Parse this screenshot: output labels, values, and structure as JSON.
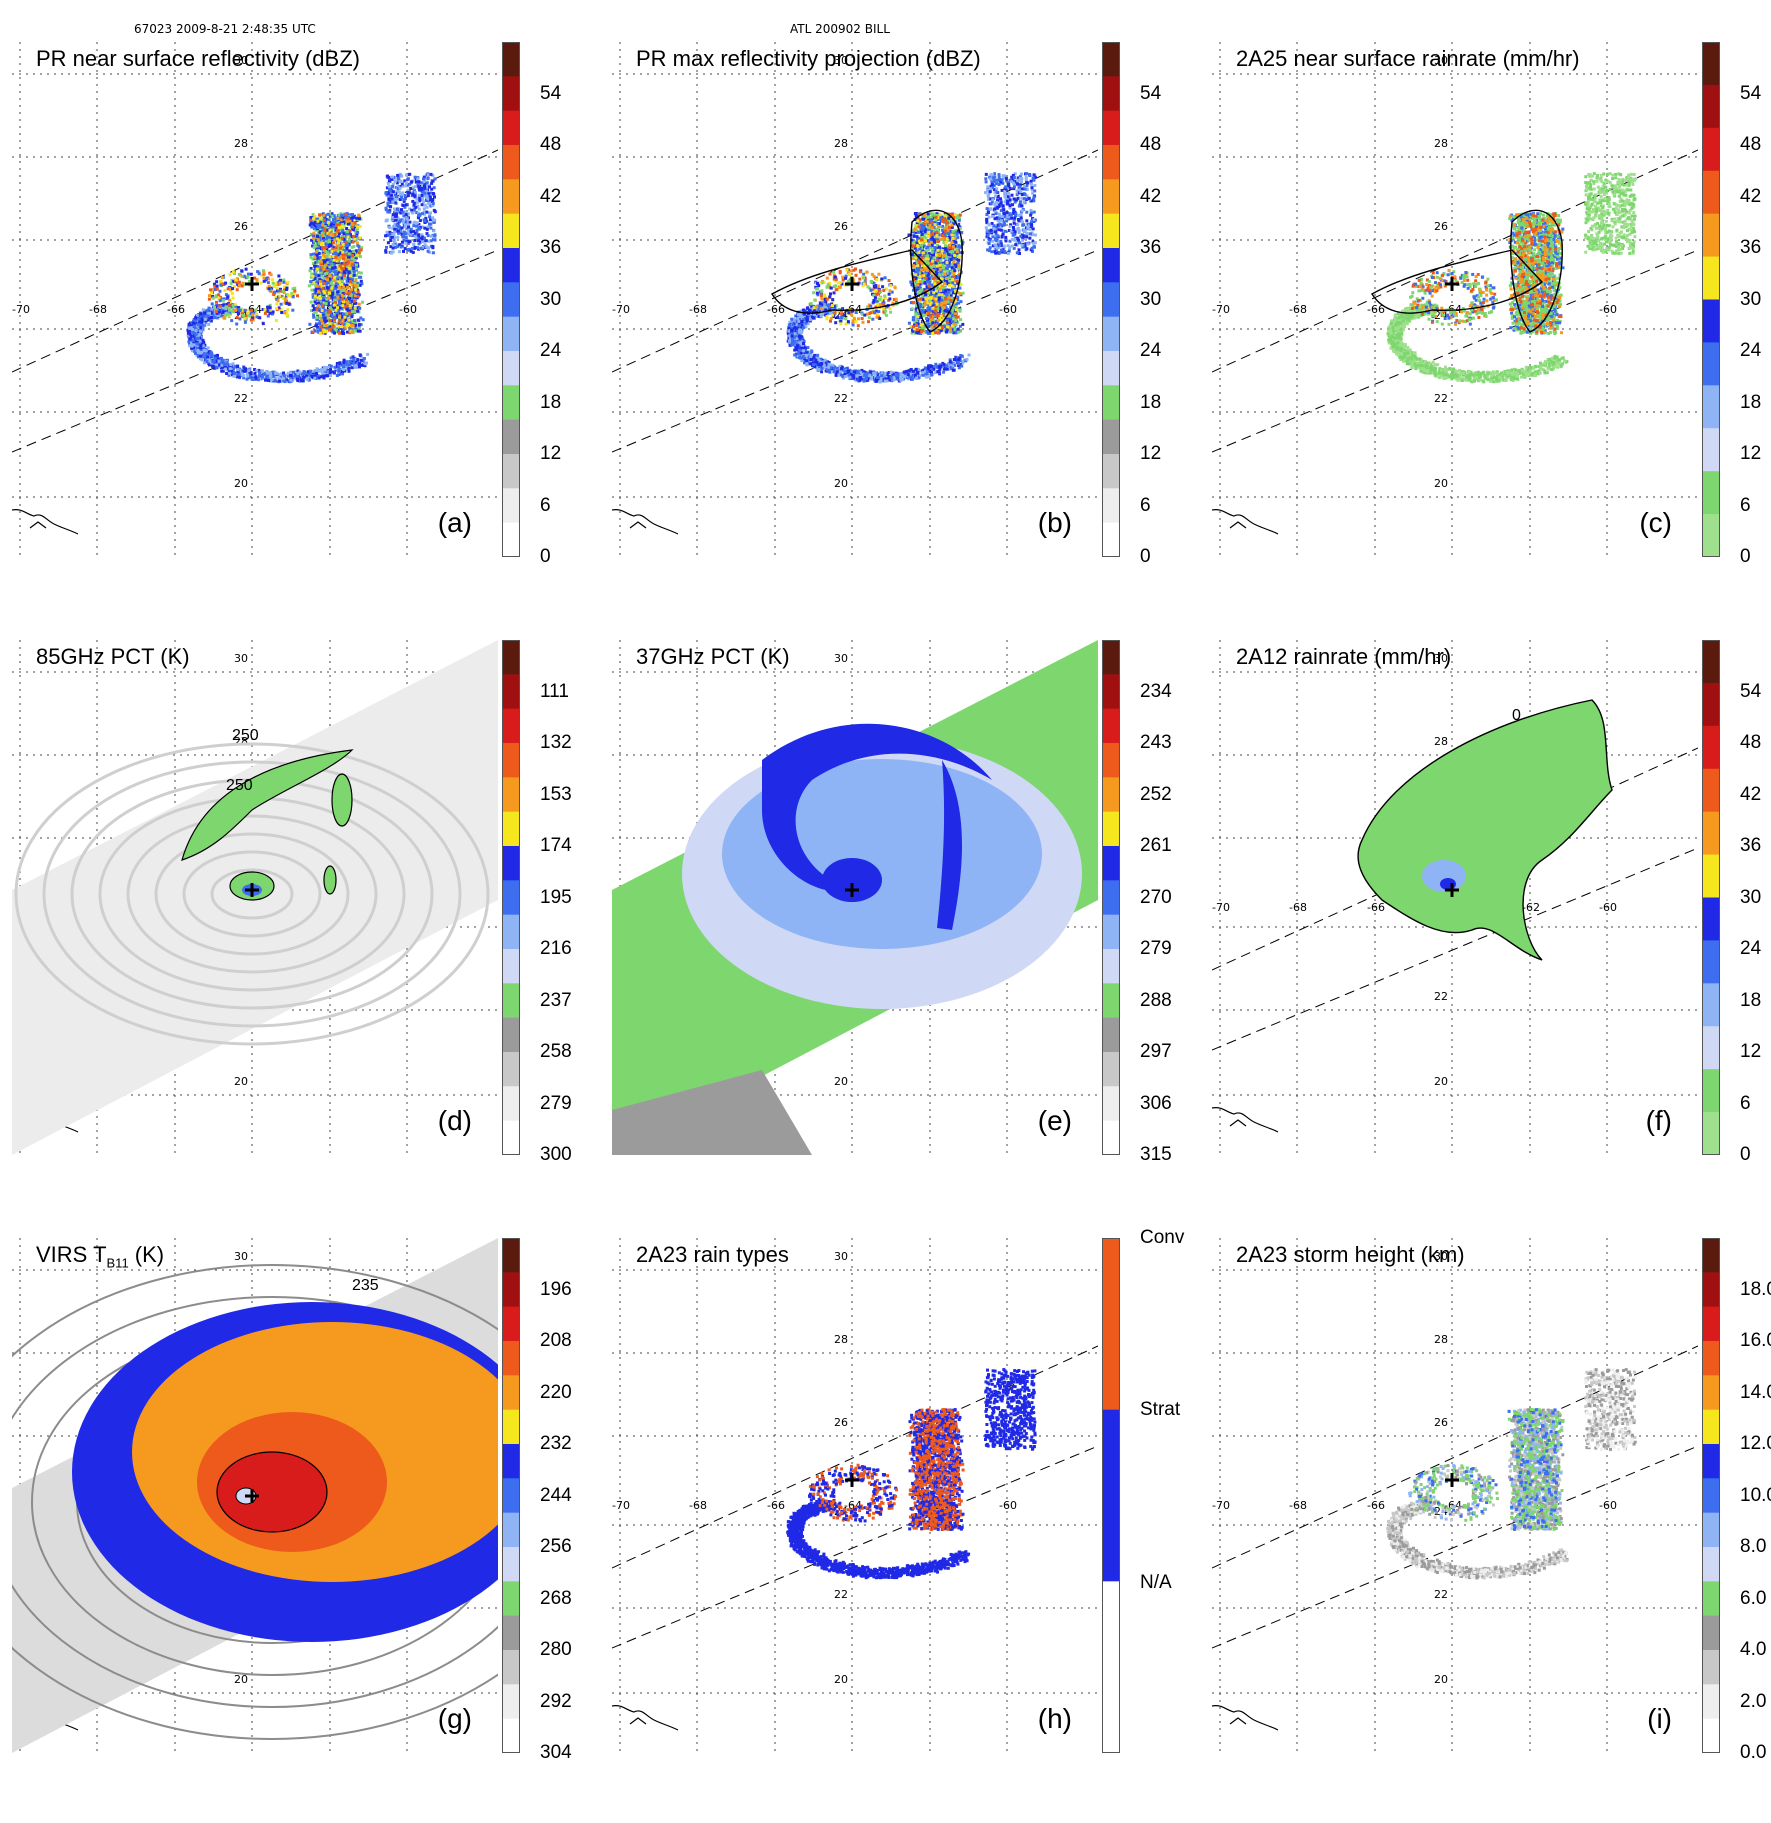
{
  "header": {
    "orbit_time": "67023 2009-8-21 2:48:35 UTC",
    "storm": "ATL 200902 BILL"
  },
  "map_labels": {
    "lon": [
      "-70",
      "-68",
      "-66",
      "-64",
      "-62",
      "-60"
    ],
    "lat": [
      "30",
      "28",
      "26",
      "24",
      "22",
      "20"
    ]
  },
  "panels": [
    {
      "tag": "(a)",
      "title": "PR near surface reflectivity (dBZ)",
      "kind": "swath",
      "scheme": "refl",
      "ticks": [
        "54",
        "48",
        "42",
        "36",
        "30",
        "24",
        "18",
        "12",
        "6",
        "0"
      ],
      "colors": [
        "#5a1a0e",
        "#a01010",
        "#d81b1b",
        "#ee5a1c",
        "#f59a1e",
        "#f5e61e",
        "#1f29e6",
        "#3d6ef0",
        "#8fb4f5",
        "#cfd8f5",
        "#7ed66e",
        "#9b9b9b",
        "#c8c8c8",
        "#eeeeee",
        "#ffffff"
      ]
    },
    {
      "tag": "(b)",
      "title": "PR max reflectivity projection (dBZ)",
      "kind": "swath",
      "scheme": "refl_max",
      "ticks": [
        "54",
        "48",
        "42",
        "36",
        "30",
        "24",
        "18",
        "12",
        "6",
        "0"
      ],
      "colors": [
        "#5a1a0e",
        "#a01010",
        "#d81b1b",
        "#ee5a1c",
        "#f59a1e",
        "#f5e61e",
        "#1f29e6",
        "#3d6ef0",
        "#8fb4f5",
        "#cfd8f5",
        "#7ed66e",
        "#9b9b9b",
        "#c8c8c8",
        "#eeeeee",
        "#ffffff"
      ]
    },
    {
      "tag": "(c)",
      "title": "2A25 near surface rainrate (mm/hr)",
      "kind": "swath",
      "scheme": "rain",
      "ticks": [
        "54",
        "48",
        "42",
        "36",
        "30",
        "24",
        "18",
        "12",
        "6",
        "0"
      ],
      "colors": [
        "#5a1a0e",
        "#a01010",
        "#d81b1b",
        "#ee5a1c",
        "#f59a1e",
        "#f5e61e",
        "#1f29e6",
        "#3d6ef0",
        "#8fb4f5",
        "#cfd8f5",
        "#7ed66e",
        "#9fe08e"
      ]
    },
    {
      "tag": "(d)",
      "title": "85GHz PCT (K)",
      "kind": "wide",
      "scheme": "pct85",
      "ticks": [
        "111",
        "132",
        "153",
        "174",
        "195",
        "216",
        "237",
        "258",
        "279",
        "300"
      ],
      "contour_labels": [
        "250",
        "250"
      ],
      "colors": [
        "#5a1a0e",
        "#a01010",
        "#d81b1b",
        "#ee5a1c",
        "#f59a1e",
        "#f5e61e",
        "#1f29e6",
        "#3d6ef0",
        "#8fb4f5",
        "#cfd8f5",
        "#7ed66e",
        "#9b9b9b",
        "#c8c8c8",
        "#eeeeee",
        "#ffffff"
      ]
    },
    {
      "tag": "(e)",
      "title": "37GHz PCT (K)",
      "kind": "wide",
      "scheme": "pct37",
      "ticks": [
        "234",
        "243",
        "252",
        "261",
        "270",
        "279",
        "288",
        "297",
        "306",
        "315"
      ],
      "colors": [
        "#5a1a0e",
        "#a01010",
        "#d81b1b",
        "#ee5a1c",
        "#f59a1e",
        "#f5e61e",
        "#1f29e6",
        "#3d6ef0",
        "#8fb4f5",
        "#cfd8f5",
        "#7ed66e",
        "#9b9b9b",
        "#c8c8c8",
        "#eeeeee",
        "#ffffff"
      ]
    },
    {
      "tag": "(f)",
      "title": "2A12 rainrate (mm/hr)",
      "kind": "wide",
      "scheme": "a12",
      "ticks": [
        "54",
        "48",
        "42",
        "36",
        "30",
        "24",
        "18",
        "12",
        "6",
        "0"
      ],
      "contour_labels": [
        "0"
      ],
      "colors": [
        "#5a1a0e",
        "#a01010",
        "#d81b1b",
        "#ee5a1c",
        "#f59a1e",
        "#f5e61e",
        "#1f29e6",
        "#3d6ef0",
        "#8fb4f5",
        "#cfd8f5",
        "#7ed66e",
        "#9fe08e"
      ]
    },
    {
      "tag": "(g)",
      "title": "VIRS T",
      "title_sub": "B11",
      "title_tail": " (K)",
      "kind": "wide",
      "scheme": "virs",
      "ticks": [
        "196",
        "208",
        "220",
        "232",
        "244",
        "256",
        "268",
        "280",
        "292",
        "304"
      ],
      "contour_labels": [
        "235"
      ],
      "colors": [
        "#5a1a0e",
        "#a01010",
        "#d81b1b",
        "#ee5a1c",
        "#f59a1e",
        "#f5e61e",
        "#1f29e6",
        "#3d6ef0",
        "#8fb4f5",
        "#cfd8f5",
        "#7ed66e",
        "#9b9b9b",
        "#c8c8c8",
        "#eeeeee",
        "#ffffff"
      ]
    },
    {
      "tag": "(h)",
      "title": "2A23 rain types",
      "kind": "swath",
      "scheme": "types",
      "ticks": [
        "Conv",
        "Strat",
        "N/A"
      ],
      "colors": [
        "#ee5a1c",
        "#1f29e6",
        "#ffffff"
      ]
    },
    {
      "tag": "(i)",
      "title": "2A23 storm height (km)",
      "kind": "swath",
      "scheme": "height",
      "ticks": [
        "18.0",
        "16.0",
        "14.0",
        "12.0",
        "10.0",
        "8.0",
        "6.0",
        "4.0",
        "2.0",
        "0.0"
      ],
      "colors": [
        "#5a1a0e",
        "#a01010",
        "#d81b1b",
        "#ee5a1c",
        "#f59a1e",
        "#f5e61e",
        "#1f29e6",
        "#3d6ef0",
        "#8fb4f5",
        "#cfd8f5",
        "#7ed66e",
        "#9b9b9b",
        "#c8c8c8",
        "#eeeeee",
        "#ffffff"
      ]
    }
  ]
}
